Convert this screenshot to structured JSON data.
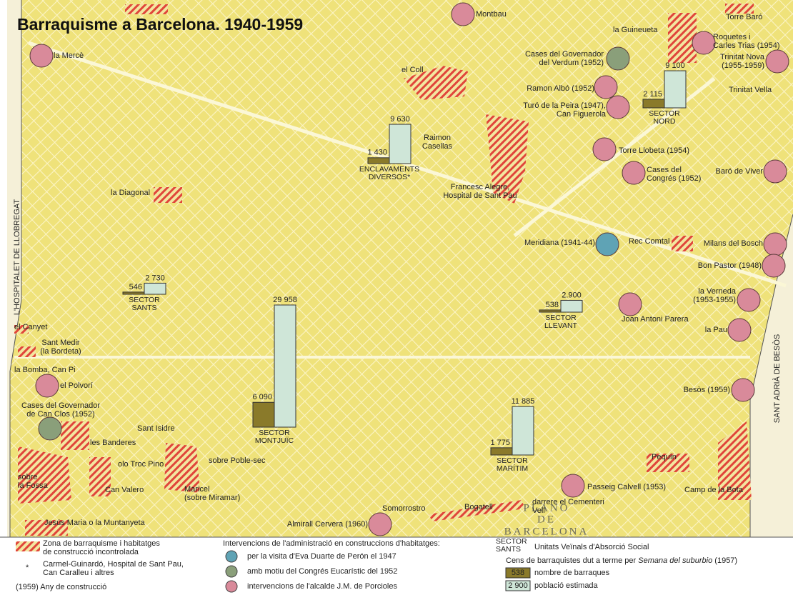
{
  "title": "Barraquisme a Barcelona. 1940-1959",
  "border_labels": {
    "west": "L'HOSPITALET DE LLOBREGAT",
    "east": "SANT ADRIÀ DE BESÒS"
  },
  "map_imprint": [
    "PLANO",
    "DE",
    "BARCELONA"
  ],
  "places": [
    {
      "lines": [
        "la Mercè"
      ],
      "color": "#d98a9a"
    },
    {
      "lines": [
        "Montbau"
      ],
      "color": "#d98a9a"
    },
    {
      "lines": [
        "la Guineueta"
      ]
    },
    {
      "lines": [
        "Torre Baró"
      ]
    },
    {
      "lines": [
        "Roquetes i",
        "Carles Trias (1954)"
      ],
      "color": "#d98a9a"
    },
    {
      "lines": [
        "Cases del Governador",
        "del Verdum (1952)"
      ],
      "color": "#8a9f7a"
    },
    {
      "lines": [
        "Trinitat Nova",
        "(1955-1959)"
      ],
      "color": "#d98a9a"
    },
    {
      "lines": [
        "el Coll"
      ]
    },
    {
      "lines": [
        "Ramon Albó (1952)"
      ],
      "color": "#d98a9a"
    },
    {
      "lines": [
        "Trinitat Vella"
      ]
    },
    {
      "lines": [
        "Turó de la Peira (1947),",
        "Can Figuerola"
      ],
      "color": "#d98a9a"
    },
    {
      "lines": [
        "Raimon",
        "Casellas"
      ]
    },
    {
      "lines": [
        "Torre Llobeta (1954)"
      ],
      "color": "#d98a9a"
    },
    {
      "lines": [
        "Cases del",
        "Congrés (1952)"
      ],
      "color": "#d98a9a"
    },
    {
      "lines": [
        "Baró de Viver"
      ],
      "color": "#d98a9a"
    },
    {
      "lines": [
        "Francesc Alegre,",
        "Hospital de Sant Pau"
      ]
    },
    {
      "lines": [
        "la Diagonal"
      ]
    },
    {
      "lines": [
        "Meridiana (1941-44)"
      ],
      "color": "#5fa3b5"
    },
    {
      "lines": [
        "Rec Comtal"
      ]
    },
    {
      "lines": [
        "Milans del Bosch"
      ],
      "color": "#d98a9a"
    },
    {
      "lines": [
        "Bon Pastor (1948)"
      ],
      "color": "#d98a9a"
    },
    {
      "lines": [
        "la Verneda",
        "(1953-1955)"
      ],
      "color": "#d98a9a"
    },
    {
      "lines": [
        "Joan Antoni Parera"
      ],
      "color": "#d98a9a"
    },
    {
      "lines": [
        "el Canyet"
      ]
    },
    {
      "lines": [
        "la Pau"
      ],
      "color": "#d98a9a"
    },
    {
      "lines": [
        "Sant Medir",
        "(la Bordeta)"
      ]
    },
    {
      "lines": [
        "la Bomba, Can Pi"
      ]
    },
    {
      "lines": [
        "el Polvorí"
      ],
      "color": "#d98a9a"
    },
    {
      "lines": [
        "Besòs (1959)"
      ],
      "color": "#d98a9a"
    },
    {
      "lines": [
        "Cases del Governador",
        "de Can Clos (1952)"
      ],
      "color": "#8a9f7a"
    },
    {
      "lines": [
        "Sant Isidre"
      ]
    },
    {
      "lines": [
        "les Banderes"
      ]
    },
    {
      "lines": [
        "sobre Poble-sec"
      ]
    },
    {
      "lines": [
        "olo Troc Pino"
      ]
    },
    {
      "lines": [
        "Pequín"
      ]
    },
    {
      "lines": [
        "sobre",
        "la Fossa"
      ]
    },
    {
      "lines": [
        "Can Valero"
      ]
    },
    {
      "lines": [
        "Maricel",
        "(sobre Miramar)"
      ]
    },
    {
      "lines": [
        "Passeig Calvell (1953)"
      ],
      "color": "#d98a9a"
    },
    {
      "lines": [
        "Camp de la Bota"
      ]
    },
    {
      "lines": [
        "darrere el Cementeri",
        "Vell"
      ]
    },
    {
      "lines": [
        "Somorrostro"
      ]
    },
    {
      "lines": [
        "Bogatell"
      ]
    },
    {
      "lines": [
        "Jesús Maria o la Muntanyeta"
      ]
    },
    {
      "lines": [
        "Almirall Cervera (1960)"
      ],
      "color": "#d98a9a"
    }
  ],
  "sectors": [
    {
      "name": [
        "SECTOR",
        "SANTS"
      ],
      "barraques": 546,
      "poblacio": {
        "value": 2730,
        "label": "2 730"
      }
    },
    {
      "name": [
        "SECTOR",
        "NORD"
      ],
      "barraques": {
        "value": 2115,
        "label": "2 115"
      },
      "poblacio": {
        "value": 9100,
        "label": "9 100"
      }
    },
    {
      "name": [
        "ENCLAVAMENTS",
        "DIVERSOS*"
      ],
      "barraques": {
        "value": 1430,
        "label": "1 430"
      },
      "poblacio": {
        "value": 9630,
        "label": "9 630"
      }
    },
    {
      "name": [
        "SECTOR",
        "LLEVANT"
      ],
      "barraques": 538,
      "poblacio": {
        "value": 2900,
        "label": "2.900"
      }
    },
    {
      "name": [
        "SECTOR",
        "MONTJUÏC"
      ],
      "barraques": {
        "value": 6090,
        "label": "6 090"
      },
      "poblacio": {
        "value": 29958,
        "label": "29 958"
      }
    },
    {
      "name": [
        "SECTOR",
        "MARÍTIM"
      ],
      "barraques": {
        "value": 1775,
        "label": "1 775"
      },
      "poblacio": {
        "value": 11885,
        "label": "11 885"
      }
    }
  ],
  "legend": {
    "zone": [
      "Zona de barraquisme i habitatges",
      "de construcció incontrolada"
    ],
    "asterisk_mark": "*",
    "asterisk_text": [
      "Carmel-Guinardó, Hospital de Sant Pau,",
      "Can Caralleu i altres"
    ],
    "year_note": "(1959) Any de construcció",
    "interventions_title": "Intervencions de l'administració en construccions d'habitatges:",
    "interventions": [
      {
        "text": "per la visita d'Eva Duarte de Perón el 1947",
        "color": "#5fa3b5"
      },
      {
        "text": "amb motiu del Congrés Eucarístic del 1952",
        "color": "#8a9f7a"
      },
      {
        "text": "intervencions de l'alcalde J.M. de Porcioles",
        "color": "#d98a9a"
      }
    ],
    "uvas_tag": [
      "SECTOR",
      "SANTS"
    ],
    "uvas_text": "Unitats Veïnals d'Absorció Social",
    "census": [
      "Cens de barraquistes dut a terme per ",
      "Semana del suburbio",
      " (1957)"
    ],
    "sample_barraques": 538,
    "sample_barraques_text": "nombre de barraques",
    "sample_poblacio": {
      "value": 2900,
      "label": "2 900"
    },
    "sample_poblacio_text": "població estimada"
  }
}
